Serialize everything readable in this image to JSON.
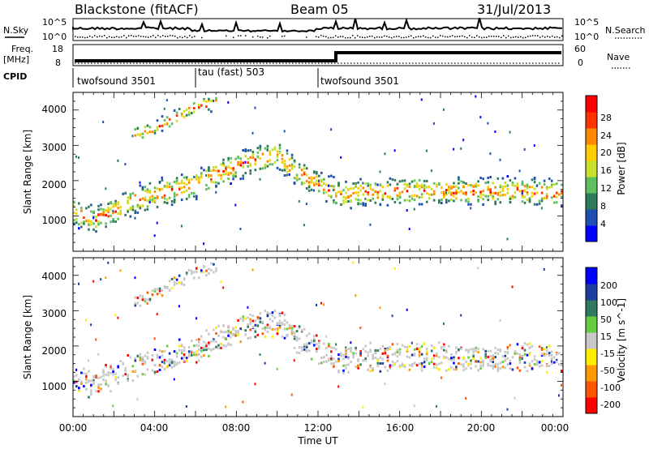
{
  "header": {
    "station": "Blackstone (fitACF)",
    "beam": "Beam 05",
    "date": "31/Jul/2013"
  },
  "colors": {
    "power": [
      "#0000ff",
      "#1f4fb0",
      "#2d7a5a",
      "#5fbf5f",
      "#c8e02a",
      "#ffcc00",
      "#ff8800",
      "#ff3300",
      "#ff0000"
    ],
    "velocity": [
      "#0000ff",
      "#1a3fa0",
      "#2f7a5e",
      "#66cc44",
      "#c8c8c8",
      "#ffee00",
      "#ff9900",
      "#ff5500",
      "#ff0000"
    ]
  },
  "panels": {
    "nsky": {
      "left_label": "N.Sky",
      "right_label": "N.Search",
      "ticks_left": [
        "10^5",
        "10^0"
      ],
      "ticks_right": [
        "10^5",
        "10^0"
      ]
    },
    "freq": {
      "left_label_1": "Freq.",
      "left_label_2": "[MHz]",
      "right_label": "Nave",
      "ticks_left": [
        "18",
        "8"
      ],
      "ticks_right": [
        "60",
        "0"
      ]
    },
    "cpid": {
      "label": "CPID",
      "segments": [
        {
          "label": "twofsound 3501",
          "start_hour": 0,
          "end_hour": 6
        },
        {
          "label": "tau (fast) 503",
          "start_hour": 6,
          "end_hour": 12
        },
        {
          "label": "twofsound 3501",
          "start_hour": 12,
          "end_hour": 24
        }
      ]
    }
  },
  "chart_data": [
    {
      "type": "heatmap",
      "title": "",
      "parameter": "Power",
      "ylabel": "Slant Range [km]",
      "xlabel": "",
      "colorbar_label": "Power [dB]",
      "colorbar_ticks": [
        "28",
        "24",
        "20",
        "16",
        "12",
        "8",
        "4"
      ],
      "colorbar_range": [
        0,
        32
      ],
      "ylim": [
        0,
        4500
      ],
      "y_ticks": [
        "4000",
        "3000",
        "2000",
        "1000"
      ],
      "xlim_hours": [
        0,
        24
      ],
      "echo_bands": [
        {
          "name": "ground scatter / F-region",
          "points": [
            [
              0,
              1100
            ],
            [
              1,
              900
            ],
            [
              2,
              1150
            ],
            [
              3,
              1450
            ],
            [
              4,
              1600
            ],
            [
              5,
              1750
            ],
            [
              6,
              1900
            ],
            [
              7,
              2200
            ],
            [
              8,
              2400
            ],
            [
              9,
              2600
            ],
            [
              10,
              2700
            ],
            [
              11,
              2200
            ],
            [
              12,
              1900
            ],
            [
              13,
              1600
            ],
            [
              14,
              1650
            ],
            [
              16,
              1700
            ],
            [
              18,
              1700
            ],
            [
              20,
              1700
            ],
            [
              22,
              1700
            ],
            [
              24,
              1650
            ]
          ]
        },
        {
          "name": "upper band",
          "points": [
            [
              3,
              3300
            ],
            [
              4,
              3500
            ],
            [
              5,
              3800
            ],
            [
              6,
              4100
            ],
            [
              7,
              4200
            ]
          ]
        }
      ]
    },
    {
      "type": "heatmap",
      "title": "",
      "parameter": "Velocity",
      "ylabel": "Slant Range [km]",
      "xlabel": "Time UT",
      "colorbar_label": "Velocity [m s^-1]",
      "colorbar_ticks": [
        "200",
        "100",
        "50",
        "15",
        "-15",
        "-50",
        "-100",
        "-200"
      ],
      "colorbar_range": [
        -250,
        250
      ],
      "ylim": [
        0,
        4500
      ],
      "y_ticks": [
        "4000",
        "3000",
        "2000",
        "1000"
      ],
      "x_ticks": [
        "00:00",
        "04:00",
        "08:00",
        "12:00",
        "16:00",
        "20:00",
        "00:00"
      ],
      "xlim_hours": [
        0,
        24
      ]
    }
  ]
}
